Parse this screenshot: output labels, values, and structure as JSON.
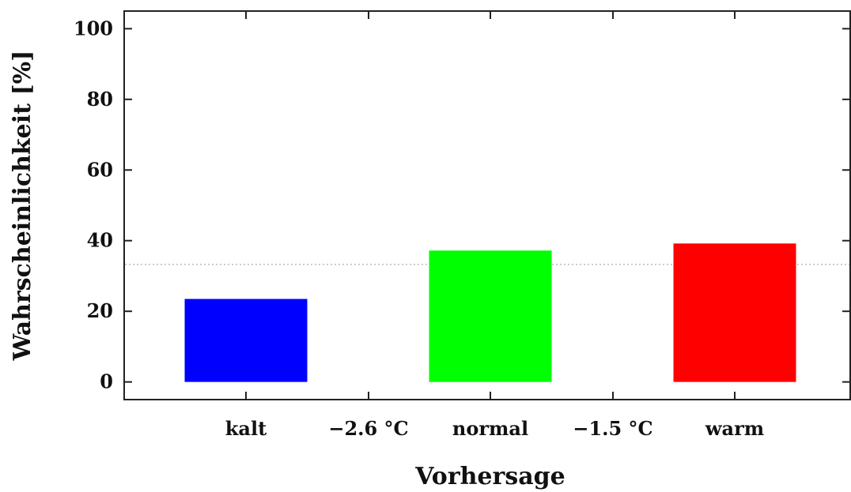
{
  "chart_data": {
    "type": "bar",
    "categories": [
      "kalt",
      "normal",
      "warm"
    ],
    "values": [
      23.5,
      37.2,
      39.2
    ],
    "colors": [
      "#0000ff",
      "#00ff00",
      "#ff0000"
    ],
    "reference_line": {
      "value": 33.3,
      "style": "dotted",
      "color": "#bbbbbb"
    },
    "boundary_labels": [
      "−2.6 °C",
      "−1.5 °C"
    ],
    "xlabel": "Vorhersage",
    "ylabel": "Wahrscheinlichkeit [%]",
    "ylim": [
      -5,
      105
    ],
    "yticks": [
      "0",
      "20",
      "40",
      "60",
      "80",
      "100"
    ],
    "grid": false
  }
}
